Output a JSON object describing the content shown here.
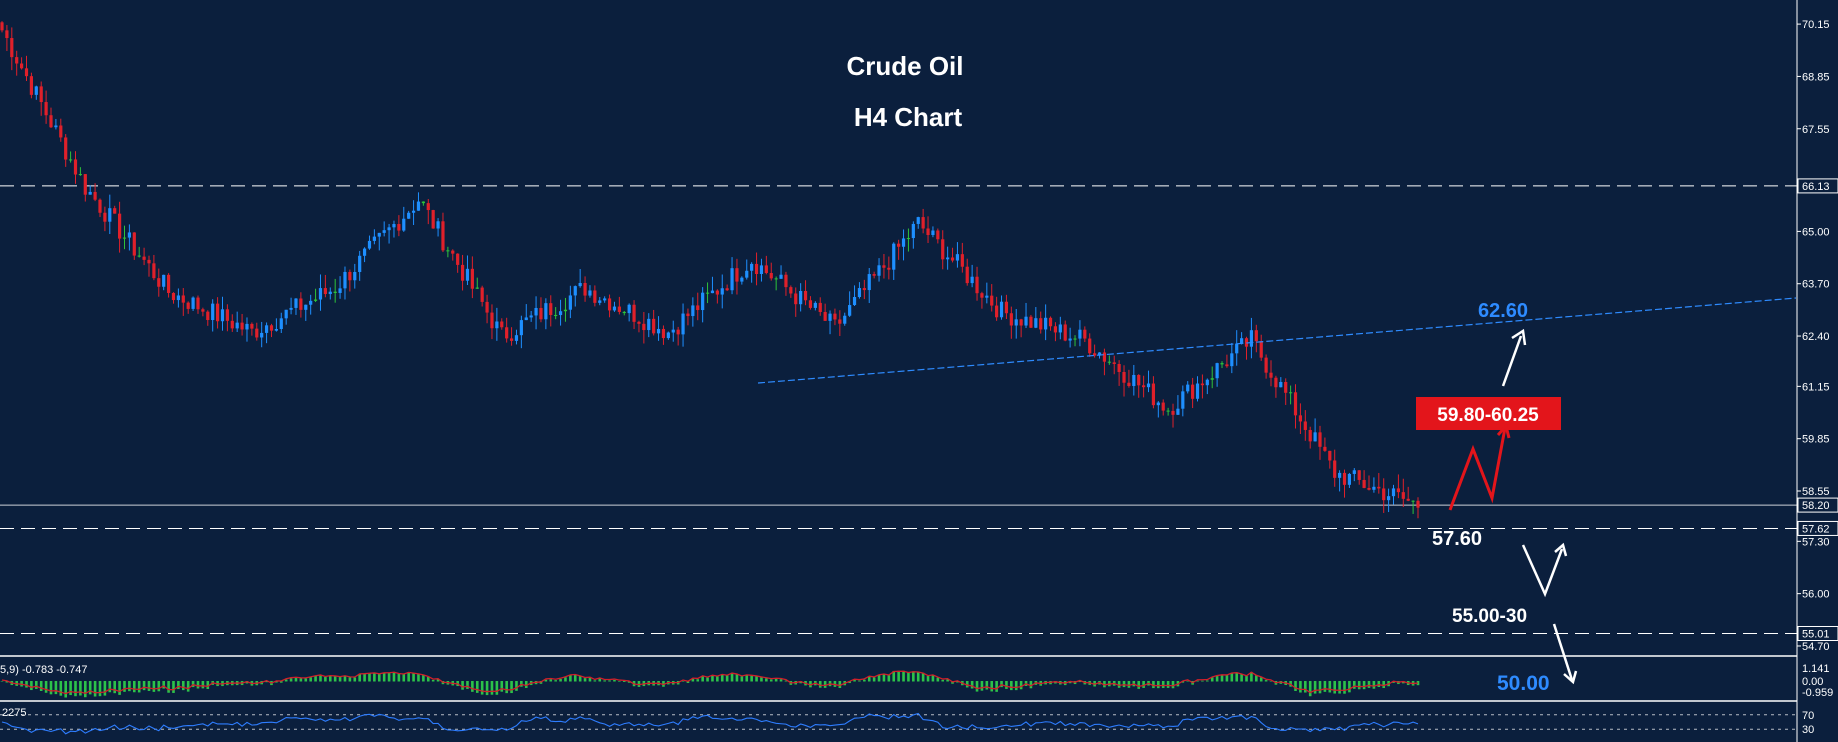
{
  "colors": {
    "background": "#0b1f3d",
    "bull_candle": "#1e8fff",
    "bear_candle": "#e0202a",
    "doji_candle": "#2ec33a",
    "trendline": "#2e8bff",
    "dashed_levels": "#ffffff",
    "label_red_box": "#e3151b",
    "label_blue_text": "#2e8bff",
    "macd_hist": "#2cc24a",
    "macd_signal": "#d0202a",
    "rsi_line": "#2e7dff"
  },
  "title": {
    "line1": "Crude Oil",
    "line2": "H4 Chart"
  },
  "annotations": {
    "resistance_trend": "62.60",
    "red_box": "59.80-60.25",
    "support_1": "57.60",
    "support_2": "55.00-30",
    "target_low": "50.00"
  },
  "indicators": {
    "macd_label": "5,9) -0.783 -0.747",
    "macd_ticks": [
      "1.141",
      "0.00",
      "-0.959"
    ],
    "rsi_label": "2275",
    "rsi_ticks": [
      "70",
      "30"
    ]
  },
  "chart_data": {
    "type": "candlestick",
    "instrument": "Crude Oil",
    "timeframe": "H4",
    "y_axis_ticks": [
      "70.15",
      "68.85",
      "67.55",
      "66.13",
      "65.00",
      "63.70",
      "62.40",
      "61.15",
      "59.85",
      "58.55",
      "58.20",
      "57.62",
      "57.30",
      "56.00",
      "55.01",
      "54.70"
    ],
    "ylim": [
      54.6,
      70.55
    ],
    "key_levels": {
      "resistance": 66.13,
      "current": 58.2,
      "support": 57.62,
      "lower_support": 55.01
    },
    "trendline": {
      "from_price": 61.15,
      "to_price": 63.3
    },
    "path_keypoints": [
      70.0,
      66.1,
      63.5,
      62.5,
      63.6,
      65.8,
      62.4,
      63.6,
      62.5,
      64.3,
      62.6,
      65.2,
      63.0,
      62.3,
      60.6,
      62.3,
      59.0,
      58.2
    ],
    "current_price": 58.2
  }
}
